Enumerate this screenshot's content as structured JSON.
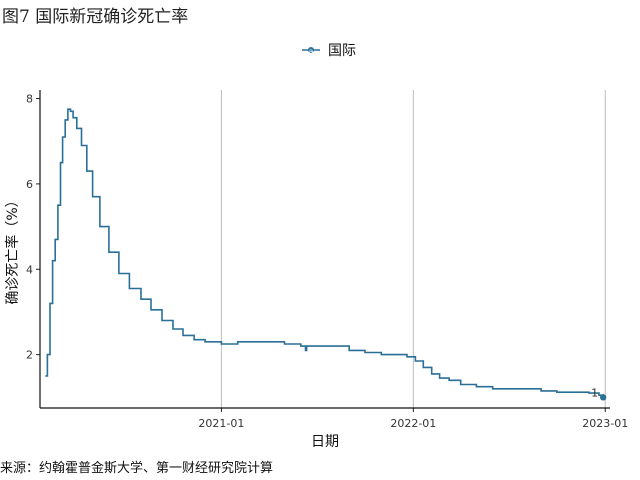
{
  "figure": {
    "title": "图7 国际新冠确诊死亡率",
    "source": "来源：约翰霍普金斯大学、第一财经研究院计算"
  },
  "chart_data": {
    "type": "line",
    "xlabel": "日期",
    "ylabel": "确诊死亡率（%）",
    "x_ticks": [
      "2021-01",
      "2022-01",
      "2023-01"
    ],
    "y_ticks": [
      2,
      4,
      6,
      8
    ],
    "xlim": [
      "2020-01-22",
      "2023-01-10"
    ],
    "ylim": [
      0.75,
      8.2
    ],
    "grid": "vertical",
    "legend": {
      "position": "top",
      "entries": [
        {
          "name": "国际",
          "symbol": "a"
        }
      ]
    },
    "series": [
      {
        "name": "国际",
        "color": "#2a6f97",
        "end_label": "1",
        "points": [
          [
            "2020-02-01",
            1.5
          ],
          [
            "2020-02-05",
            2.0
          ],
          [
            "2020-02-10",
            3.2
          ],
          [
            "2020-02-15",
            4.2
          ],
          [
            "2020-02-20",
            4.7
          ],
          [
            "2020-02-25",
            5.5
          ],
          [
            "2020-03-01",
            6.5
          ],
          [
            "2020-03-05",
            7.1
          ],
          [
            "2020-03-10",
            7.5
          ],
          [
            "2020-03-15",
            7.75
          ],
          [
            "2020-03-20",
            7.7
          ],
          [
            "2020-03-25",
            7.55
          ],
          [
            "2020-04-01",
            7.3
          ],
          [
            "2020-04-10",
            6.9
          ],
          [
            "2020-04-20",
            6.3
          ],
          [
            "2020-05-01",
            5.7
          ],
          [
            "2020-05-15",
            5.0
          ],
          [
            "2020-06-01",
            4.4
          ],
          [
            "2020-06-20",
            3.9
          ],
          [
            "2020-07-10",
            3.55
          ],
          [
            "2020-08-01",
            3.3
          ],
          [
            "2020-08-20",
            3.05
          ],
          [
            "2020-09-10",
            2.8
          ],
          [
            "2020-10-01",
            2.6
          ],
          [
            "2020-10-20",
            2.45
          ],
          [
            "2020-11-10",
            2.35
          ],
          [
            "2020-12-01",
            2.3
          ],
          [
            "2021-01-01",
            2.25
          ],
          [
            "2021-02-01",
            2.3
          ],
          [
            "2021-04-01",
            2.3
          ],
          [
            "2021-05-01",
            2.25
          ],
          [
            "2021-06-01",
            2.2
          ],
          [
            "2021-06-10",
            2.1
          ],
          [
            "2021-06-12",
            2.2
          ],
          [
            "2021-08-01",
            2.2
          ],
          [
            "2021-09-01",
            2.1
          ],
          [
            "2021-10-01",
            2.05
          ],
          [
            "2021-11-01",
            2.0
          ],
          [
            "2021-12-01",
            2.0
          ],
          [
            "2021-12-20",
            1.95
          ],
          [
            "2022-01-05",
            1.85
          ],
          [
            "2022-01-20",
            1.7
          ],
          [
            "2022-02-05",
            1.55
          ],
          [
            "2022-02-20",
            1.45
          ],
          [
            "2022-03-10",
            1.4
          ],
          [
            "2022-04-01",
            1.3
          ],
          [
            "2022-05-01",
            1.25
          ],
          [
            "2022-06-01",
            1.2
          ],
          [
            "2022-08-01",
            1.2
          ],
          [
            "2022-09-01",
            1.15
          ],
          [
            "2022-10-01",
            1.12
          ],
          [
            "2022-12-01",
            1.1
          ],
          [
            "2022-12-20",
            1.05
          ],
          [
            "2022-12-28",
            1.0
          ]
        ]
      }
    ]
  }
}
